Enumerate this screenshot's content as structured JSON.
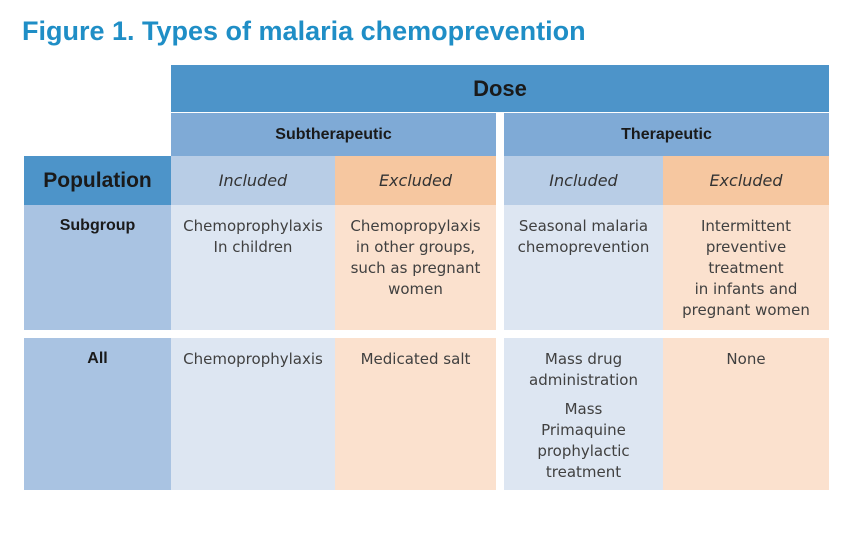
{
  "title": "Figure 1. Types of malaria chemoprevention",
  "dose_label": "Dose",
  "subtherapeutic_label": "Subtherapeutic",
  "therapeutic_label": "Therapeutic",
  "population_label": "Population",
  "columns": {
    "sub_included": "Included",
    "sub_excluded": "Excluded",
    "ther_included": "Included",
    "ther_excluded": "Excluded"
  },
  "rows": {
    "subgroup": {
      "label": "Subgroup",
      "sub_included": "Chemoprophylaxis\nIn children",
      "sub_excluded": "Chemopropylaxis\nin other groups,\nsuch as pregnant\nwomen",
      "ther_included": "Seasonal malaria\nchemoprevention",
      "ther_excluded": "Intermittent\npreventive\ntreatment\nin infants and\npregnant women"
    },
    "all": {
      "label": "All",
      "sub_included": "Chemoprophylaxis",
      "sub_excluded": "Medicated salt",
      "ther_included_1": "Mass drug\nadministration",
      "ther_included_2": "Mass\nPrimaquine\nprophylactic\ntreatment",
      "ther_excluded": "None"
    }
  }
}
